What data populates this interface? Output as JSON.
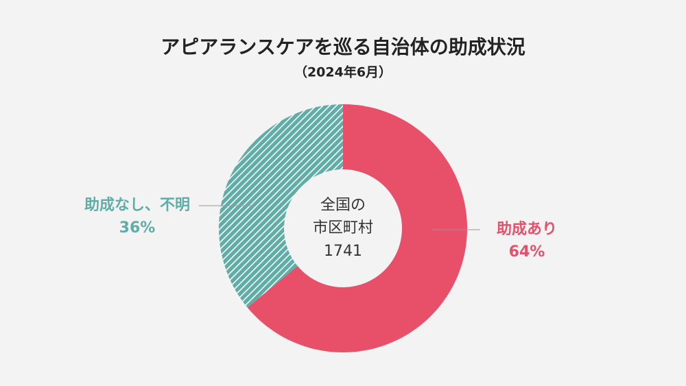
{
  "chart_data": {
    "type": "pie",
    "title": "アピアランスケアを巡る自治体の助成状況",
    "subtitle": "（2024年6月）",
    "center_label": [
      "全国の",
      "市区町村"
    ],
    "center_value": 1741,
    "categories": [
      "助成あり",
      "助成なし、不明"
    ],
    "values": [
      64,
      36
    ],
    "value_labels": [
      "64%",
      "36%"
    ],
    "colors": [
      "#e8506a",
      "#5fada7"
    ],
    "hatched": [
      false,
      true
    ],
    "donut": true
  }
}
